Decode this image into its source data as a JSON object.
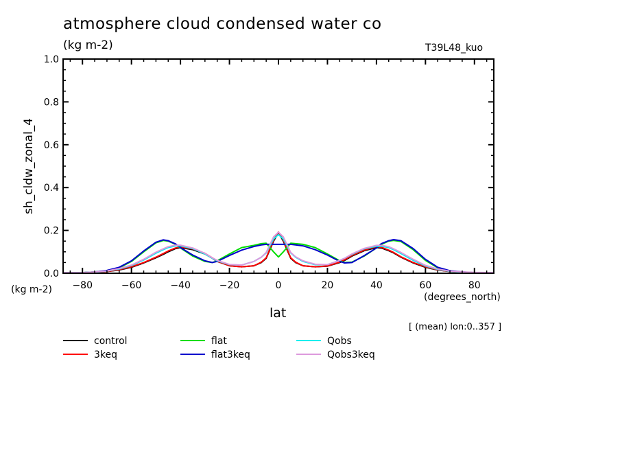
{
  "header": {
    "title": "atmosphere cloud condensed water co",
    "units": "(kg m-2)",
    "model": "T39L48_kuo"
  },
  "footer": {
    "note": "[ (mean) lon:0..357 ]"
  },
  "chart_data": {
    "type": "line",
    "title": "atmosphere cloud condensed water co",
    "subtitle": "(kg m-2)",
    "xlabel": "lat",
    "xunits": "(degrees_north)",
    "ylabel": "sh_cldw_zonal_4",
    "yunits": "(kg m-2)",
    "xlim": [
      -87.9,
      87.9
    ],
    "ylim": [
      0.0,
      1.0
    ],
    "xticks": [
      -80,
      -60,
      -40,
      -20,
      0,
      20,
      40,
      60,
      80
    ],
    "xtick_labels": [
      "−80",
      "−60",
      "−40",
      "−20",
      "0",
      "20",
      "40",
      "60",
      "80"
    ],
    "yticks": [
      0.0,
      0.2,
      0.4,
      0.6,
      0.8,
      1.0
    ],
    "ytick_labels": [
      "0.0",
      "0.2",
      "0.4",
      "0.6",
      "0.8",
      "1.0"
    ],
    "x_minor_step": 5,
    "y_minor_step": 0.05,
    "grid": false,
    "legend_position": "bottom-left",
    "x": [
      -87.9,
      -80,
      -75,
      -70,
      -65,
      -60,
      -55,
      -50,
      -47,
      -45,
      -42,
      -40,
      -35,
      -30,
      -27,
      -25,
      -20,
      -15,
      -10,
      -7,
      -5,
      -2,
      0,
      2,
      5,
      7,
      10,
      15,
      20,
      25,
      27,
      30,
      35,
      40,
      42,
      45,
      47,
      50,
      55,
      60,
      65,
      70,
      75,
      80,
      87.9
    ],
    "series": [
      {
        "name": "control",
        "color": "#000000",
        "values": [
          0.002,
          0.003,
          0.005,
          0.008,
          0.015,
          0.028,
          0.048,
          0.072,
          0.088,
          0.1,
          0.115,
          0.12,
          0.11,
          0.09,
          0.07,
          0.055,
          0.035,
          0.03,
          0.035,
          0.05,
          0.07,
          0.15,
          0.19,
          0.15,
          0.07,
          0.05,
          0.035,
          0.03,
          0.033,
          0.05,
          0.06,
          0.08,
          0.105,
          0.12,
          0.118,
          0.105,
          0.095,
          0.075,
          0.048,
          0.028,
          0.015,
          0.008,
          0.005,
          0.003,
          0.002
        ]
      },
      {
        "name": "3keq",
        "color": "#ff0000",
        "values": [
          0.002,
          0.003,
          0.005,
          0.008,
          0.017,
          0.03,
          0.05,
          0.075,
          0.092,
          0.104,
          0.118,
          0.123,
          0.113,
          0.093,
          0.072,
          0.056,
          0.035,
          0.03,
          0.035,
          0.052,
          0.072,
          0.155,
          0.193,
          0.155,
          0.072,
          0.052,
          0.035,
          0.03,
          0.034,
          0.052,
          0.063,
          0.083,
          0.108,
          0.124,
          0.121,
          0.108,
          0.097,
          0.077,
          0.05,
          0.03,
          0.016,
          0.008,
          0.005,
          0.003,
          0.002
        ]
      },
      {
        "name": "flat",
        "color": "#00dd00",
        "values": [
          0.002,
          0.003,
          0.006,
          0.012,
          0.025,
          0.055,
          0.1,
          0.142,
          0.153,
          0.15,
          0.135,
          0.118,
          0.08,
          0.055,
          0.05,
          0.058,
          0.09,
          0.12,
          0.13,
          0.138,
          0.14,
          0.1,
          0.076,
          0.1,
          0.14,
          0.138,
          0.135,
          0.12,
          0.09,
          0.058,
          0.05,
          0.052,
          0.08,
          0.118,
          0.135,
          0.15,
          0.153,
          0.148,
          0.11,
          0.06,
          0.025,
          0.01,
          0.005,
          0.003,
          0.002
        ]
      },
      {
        "name": "flat3keq",
        "color": "#0000cc",
        "values": [
          0.002,
          0.003,
          0.006,
          0.013,
          0.028,
          0.058,
          0.104,
          0.145,
          0.156,
          0.152,
          0.137,
          0.12,
          0.085,
          0.058,
          0.05,
          0.055,
          0.083,
          0.108,
          0.125,
          0.132,
          0.135,
          0.135,
          0.135,
          0.135,
          0.135,
          0.132,
          0.128,
          0.11,
          0.085,
          0.055,
          0.048,
          0.05,
          0.082,
          0.118,
          0.138,
          0.152,
          0.157,
          0.152,
          0.115,
          0.065,
          0.028,
          0.012,
          0.006,
          0.003,
          0.002
        ]
      },
      {
        "name": "Qobs",
        "color": "#00eeee",
        "values": [
          0.002,
          0.003,
          0.005,
          0.01,
          0.02,
          0.036,
          0.062,
          0.094,
          0.11,
          0.12,
          0.128,
          0.128,
          0.115,
          0.09,
          0.07,
          0.058,
          0.04,
          0.038,
          0.055,
          0.075,
          0.095,
          0.16,
          0.18,
          0.16,
          0.095,
          0.075,
          0.055,
          0.04,
          0.04,
          0.06,
          0.07,
          0.088,
          0.114,
          0.126,
          0.126,
          0.12,
          0.11,
          0.092,
          0.06,
          0.034,
          0.018,
          0.009,
          0.005,
          0.003,
          0.002
        ]
      },
      {
        "name": "Qobs3keq",
        "color": "#dd99dd",
        "values": [
          0.003,
          0.003,
          0.006,
          0.011,
          0.022,
          0.038,
          0.065,
          0.098,
          0.114,
          0.124,
          0.131,
          0.131,
          0.118,
          0.093,
          0.072,
          0.06,
          0.041,
          0.038,
          0.055,
          0.075,
          0.097,
          0.17,
          0.192,
          0.17,
          0.097,
          0.077,
          0.058,
          0.042,
          0.04,
          0.06,
          0.07,
          0.09,
          0.116,
          0.13,
          0.13,
          0.124,
          0.114,
          0.097,
          0.065,
          0.037,
          0.02,
          0.01,
          0.006,
          0.004,
          0.003
        ]
      }
    ]
  }
}
